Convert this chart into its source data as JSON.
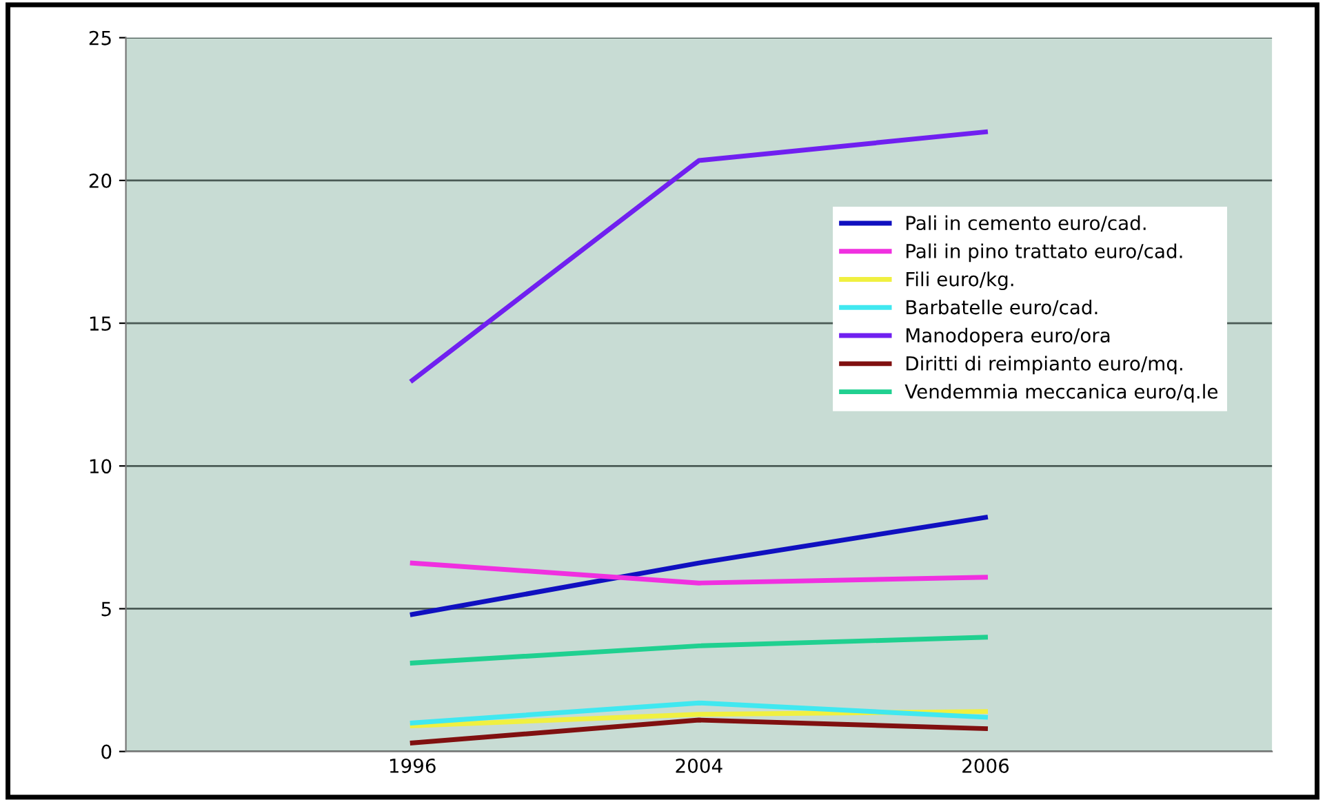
{
  "chart_data": {
    "type": "line",
    "categories": [
      "1996",
      "2004",
      "2006"
    ],
    "series": [
      {
        "name": "Pali in cemento euro/cad.",
        "color": "#1010c0",
        "values": [
          4.8,
          6.6,
          8.2
        ]
      },
      {
        "name": "Pali in pino trattato euro/cad.",
        "color": "#f030e0",
        "values": [
          6.6,
          5.9,
          6.1
        ]
      },
      {
        "name": "Fili euro/kg.",
        "color": "#f0f040",
        "values": [
          0.9,
          1.3,
          1.4
        ]
      },
      {
        "name": "Barbatelle euro/cad.",
        "color": "#40e8f0",
        "values": [
          1.0,
          1.7,
          1.2
        ]
      },
      {
        "name": "Manodopera euro/ora",
        "color": "#7020f0",
        "values": [
          13.0,
          20.7,
          21.7
        ]
      },
      {
        "name": "Diritti di reimpianto euro/mq.",
        "color": "#801010",
        "values": [
          0.3,
          1.1,
          0.8
        ]
      },
      {
        "name": "Vendemmia meccanica euro/q.le",
        "color": "#20d090",
        "values": [
          3.1,
          3.7,
          4.0
        ]
      }
    ],
    "ylim": [
      0,
      25
    ],
    "yticks": [
      0,
      5,
      10,
      15,
      20,
      25
    ],
    "grid": "y",
    "legend": "right",
    "marker": "none",
    "line_style": "solid"
  }
}
